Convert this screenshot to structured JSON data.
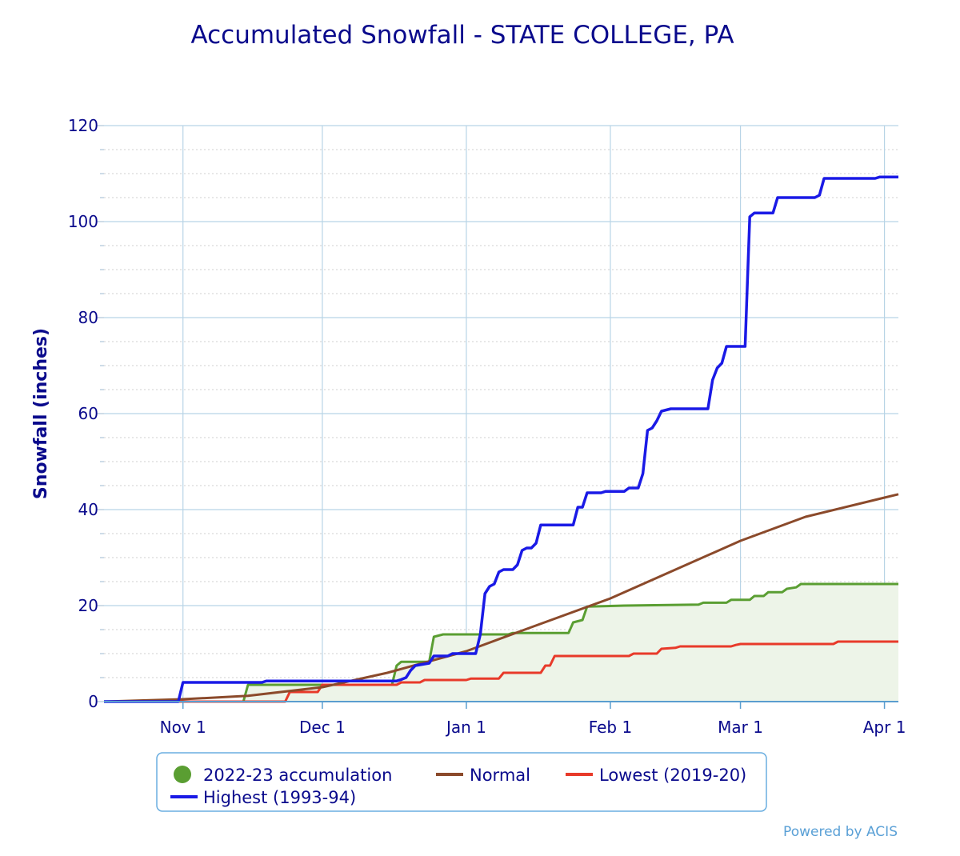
{
  "chart_data": {
    "type": "line",
    "title": "Accumulated Snowfall - STATE COLLEGE, PA",
    "ylabel": "Snowfall (inches)",
    "ylim": [
      0,
      120
    ],
    "yticks": [
      "0",
      "20",
      "40",
      "60",
      "80",
      "100",
      "120"
    ],
    "xlim": [
      "Oct 15",
      "Apr 4"
    ],
    "xticks": [
      "Nov 1",
      "Dec 1",
      "Jan 1",
      "Feb 1",
      "Mar 1",
      "Apr 1"
    ],
    "grid": true,
    "legend_position": "bottom",
    "series": [
      {
        "name": "2022-23 accumulation",
        "color": "#5a9e32",
        "fill": "#edf4e8",
        "marker": "circle",
        "points": [
          [
            "Oct 15",
            0
          ],
          [
            "Nov 14",
            0
          ],
          [
            "Nov 15",
            3.5
          ],
          [
            "Dec 16",
            3.5
          ],
          [
            "Dec 17",
            7.5
          ],
          [
            "Dec 18",
            8.3
          ],
          [
            "Dec 24",
            8.3
          ],
          [
            "Dec 25",
            13.5
          ],
          [
            "Dec 27",
            14
          ],
          [
            "Jan 10",
            14
          ],
          [
            "Jan 11",
            14.3
          ],
          [
            "Jan 23",
            14.3
          ],
          [
            "Jan 24",
            16.5
          ],
          [
            "Jan 26",
            17
          ],
          [
            "Jan 27",
            19.8
          ],
          [
            "Feb 4",
            20
          ],
          [
            "Feb 20",
            20.2
          ],
          [
            "Feb 21",
            20.6
          ],
          [
            "Feb 26",
            20.6
          ],
          [
            "Feb 27",
            21.2
          ],
          [
            "Mar 3",
            21.2
          ],
          [
            "Mar 4",
            22
          ],
          [
            "Mar 6",
            22
          ],
          [
            "Mar 7",
            22.8
          ],
          [
            "Mar 10",
            22.8
          ],
          [
            "Mar 11",
            23.5
          ],
          [
            "Mar 13",
            23.8
          ],
          [
            "Mar 14",
            24.5
          ],
          [
            "Apr 4",
            24.5
          ]
        ]
      },
      {
        "name": "Normal",
        "color": "#8b4a2b",
        "points": [
          [
            "Oct 15",
            0
          ],
          [
            "Nov 1",
            0.5
          ],
          [
            "Nov 15",
            1.2
          ],
          [
            "Dec 1",
            3
          ],
          [
            "Dec 15",
            6
          ],
          [
            "Jan 1",
            10.5
          ],
          [
            "Jan 15",
            15.5
          ],
          [
            "Feb 1",
            21.5
          ],
          [
            "Feb 15",
            27.5
          ],
          [
            "Mar 1",
            33.5
          ],
          [
            "Mar 15",
            38.5
          ],
          [
            "Apr 1",
            42.5
          ],
          [
            "Apr 4",
            43.2
          ]
        ]
      },
      {
        "name": "Lowest (2019-20)",
        "color": "#e83a2a",
        "points": [
          [
            "Oct 15",
            0
          ],
          [
            "Nov 23",
            0
          ],
          [
            "Nov 24",
            2
          ],
          [
            "Nov 30",
            2
          ],
          [
            "Dec 1",
            3.5
          ],
          [
            "Dec 17",
            3.5
          ],
          [
            "Dec 18",
            4
          ],
          [
            "Dec 22",
            4
          ],
          [
            "Dec 23",
            4.5
          ],
          [
            "Jan 1",
            4.5
          ],
          [
            "Jan 2",
            4.8
          ],
          [
            "Jan 8",
            4.8
          ],
          [
            "Jan 9",
            6
          ],
          [
            "Jan 17",
            6
          ],
          [
            "Jan 18",
            7.5
          ],
          [
            "Jan 19",
            7.5
          ],
          [
            "Jan 20",
            9.5
          ],
          [
            "Feb 5",
            9.5
          ],
          [
            "Feb 6",
            10
          ],
          [
            "Feb 11",
            10
          ],
          [
            "Feb 12",
            11
          ],
          [
            "Feb 15",
            11.2
          ],
          [
            "Feb 16",
            11.5
          ],
          [
            "Feb 27",
            11.5
          ],
          [
            "Feb 28",
            11.8
          ],
          [
            "Mar 1",
            12
          ],
          [
            "Mar 21",
            12
          ],
          [
            "Mar 22",
            12.5
          ],
          [
            "Apr 4",
            12.5
          ]
        ]
      },
      {
        "name": "Highest (1993-94)",
        "color": "#1a1ae6",
        "points": [
          [
            "Oct 15",
            0
          ],
          [
            "Oct 31",
            0
          ],
          [
            "Nov 1",
            4
          ],
          [
            "Nov 18",
            4
          ],
          [
            "Nov 19",
            4.3
          ],
          [
            "Dec 17",
            4.3
          ],
          [
            "Dec 18",
            4.6
          ],
          [
            "Dec 19",
            5
          ],
          [
            "Dec 20",
            6.5
          ],
          [
            "Dec 21",
            7.5
          ],
          [
            "Dec 24",
            8
          ],
          [
            "Dec 25",
            9.5
          ],
          [
            "Dec 28",
            9.5
          ],
          [
            "Dec 29",
            10
          ],
          [
            "Jan 3",
            10
          ],
          [
            "Jan 4",
            14
          ],
          [
            "Jan 5",
            22.5
          ],
          [
            "Jan 6",
            24
          ],
          [
            "Jan 7",
            24.5
          ],
          [
            "Jan 8",
            27
          ],
          [
            "Jan 9",
            27.5
          ],
          [
            "Jan 11",
            27.5
          ],
          [
            "Jan 12",
            28.5
          ],
          [
            "Jan 13",
            31.5
          ],
          [
            "Jan 14",
            32
          ],
          [
            "Jan 15",
            32
          ],
          [
            "Jan 16",
            33
          ],
          [
            "Jan 17",
            36.8
          ],
          [
            "Jan 24",
            36.8
          ],
          [
            "Jan 25",
            40.5
          ],
          [
            "Jan 26",
            40.5
          ],
          [
            "Jan 27",
            43.5
          ],
          [
            "Jan 30",
            43.5
          ],
          [
            "Jan 31",
            43.8
          ],
          [
            "Feb 4",
            43.8
          ],
          [
            "Feb 5",
            44.5
          ],
          [
            "Feb 7",
            44.5
          ],
          [
            "Feb 8",
            47.5
          ],
          [
            "Feb 9",
            56.5
          ],
          [
            "Feb 10",
            57
          ],
          [
            "Feb 11",
            58.5
          ],
          [
            "Feb 12",
            60.5
          ],
          [
            "Feb 14",
            61
          ],
          [
            "Feb 22",
            61
          ],
          [
            "Feb 23",
            67
          ],
          [
            "Feb 24",
            69.5
          ],
          [
            "Feb 25",
            70.5
          ],
          [
            "Feb 26",
            74
          ],
          [
            "Mar 2",
            74
          ],
          [
            "Mar 3",
            101
          ],
          [
            "Mar 4",
            101.8
          ],
          [
            "Mar 8",
            101.8
          ],
          [
            "Mar 9",
            105
          ],
          [
            "Mar 17",
            105
          ],
          [
            "Mar 18",
            105.5
          ],
          [
            "Mar 19",
            109
          ],
          [
            "Mar 30",
            109
          ],
          [
            "Mar 31",
            109.3
          ],
          [
            "Apr 4",
            109.3
          ]
        ]
      }
    ]
  },
  "legend": {
    "items": [
      "2022-23 accumulation",
      "Normal",
      "Lowest (2019-20)",
      "Highest (1993-94)"
    ]
  },
  "credit": "Powered by ACIS"
}
